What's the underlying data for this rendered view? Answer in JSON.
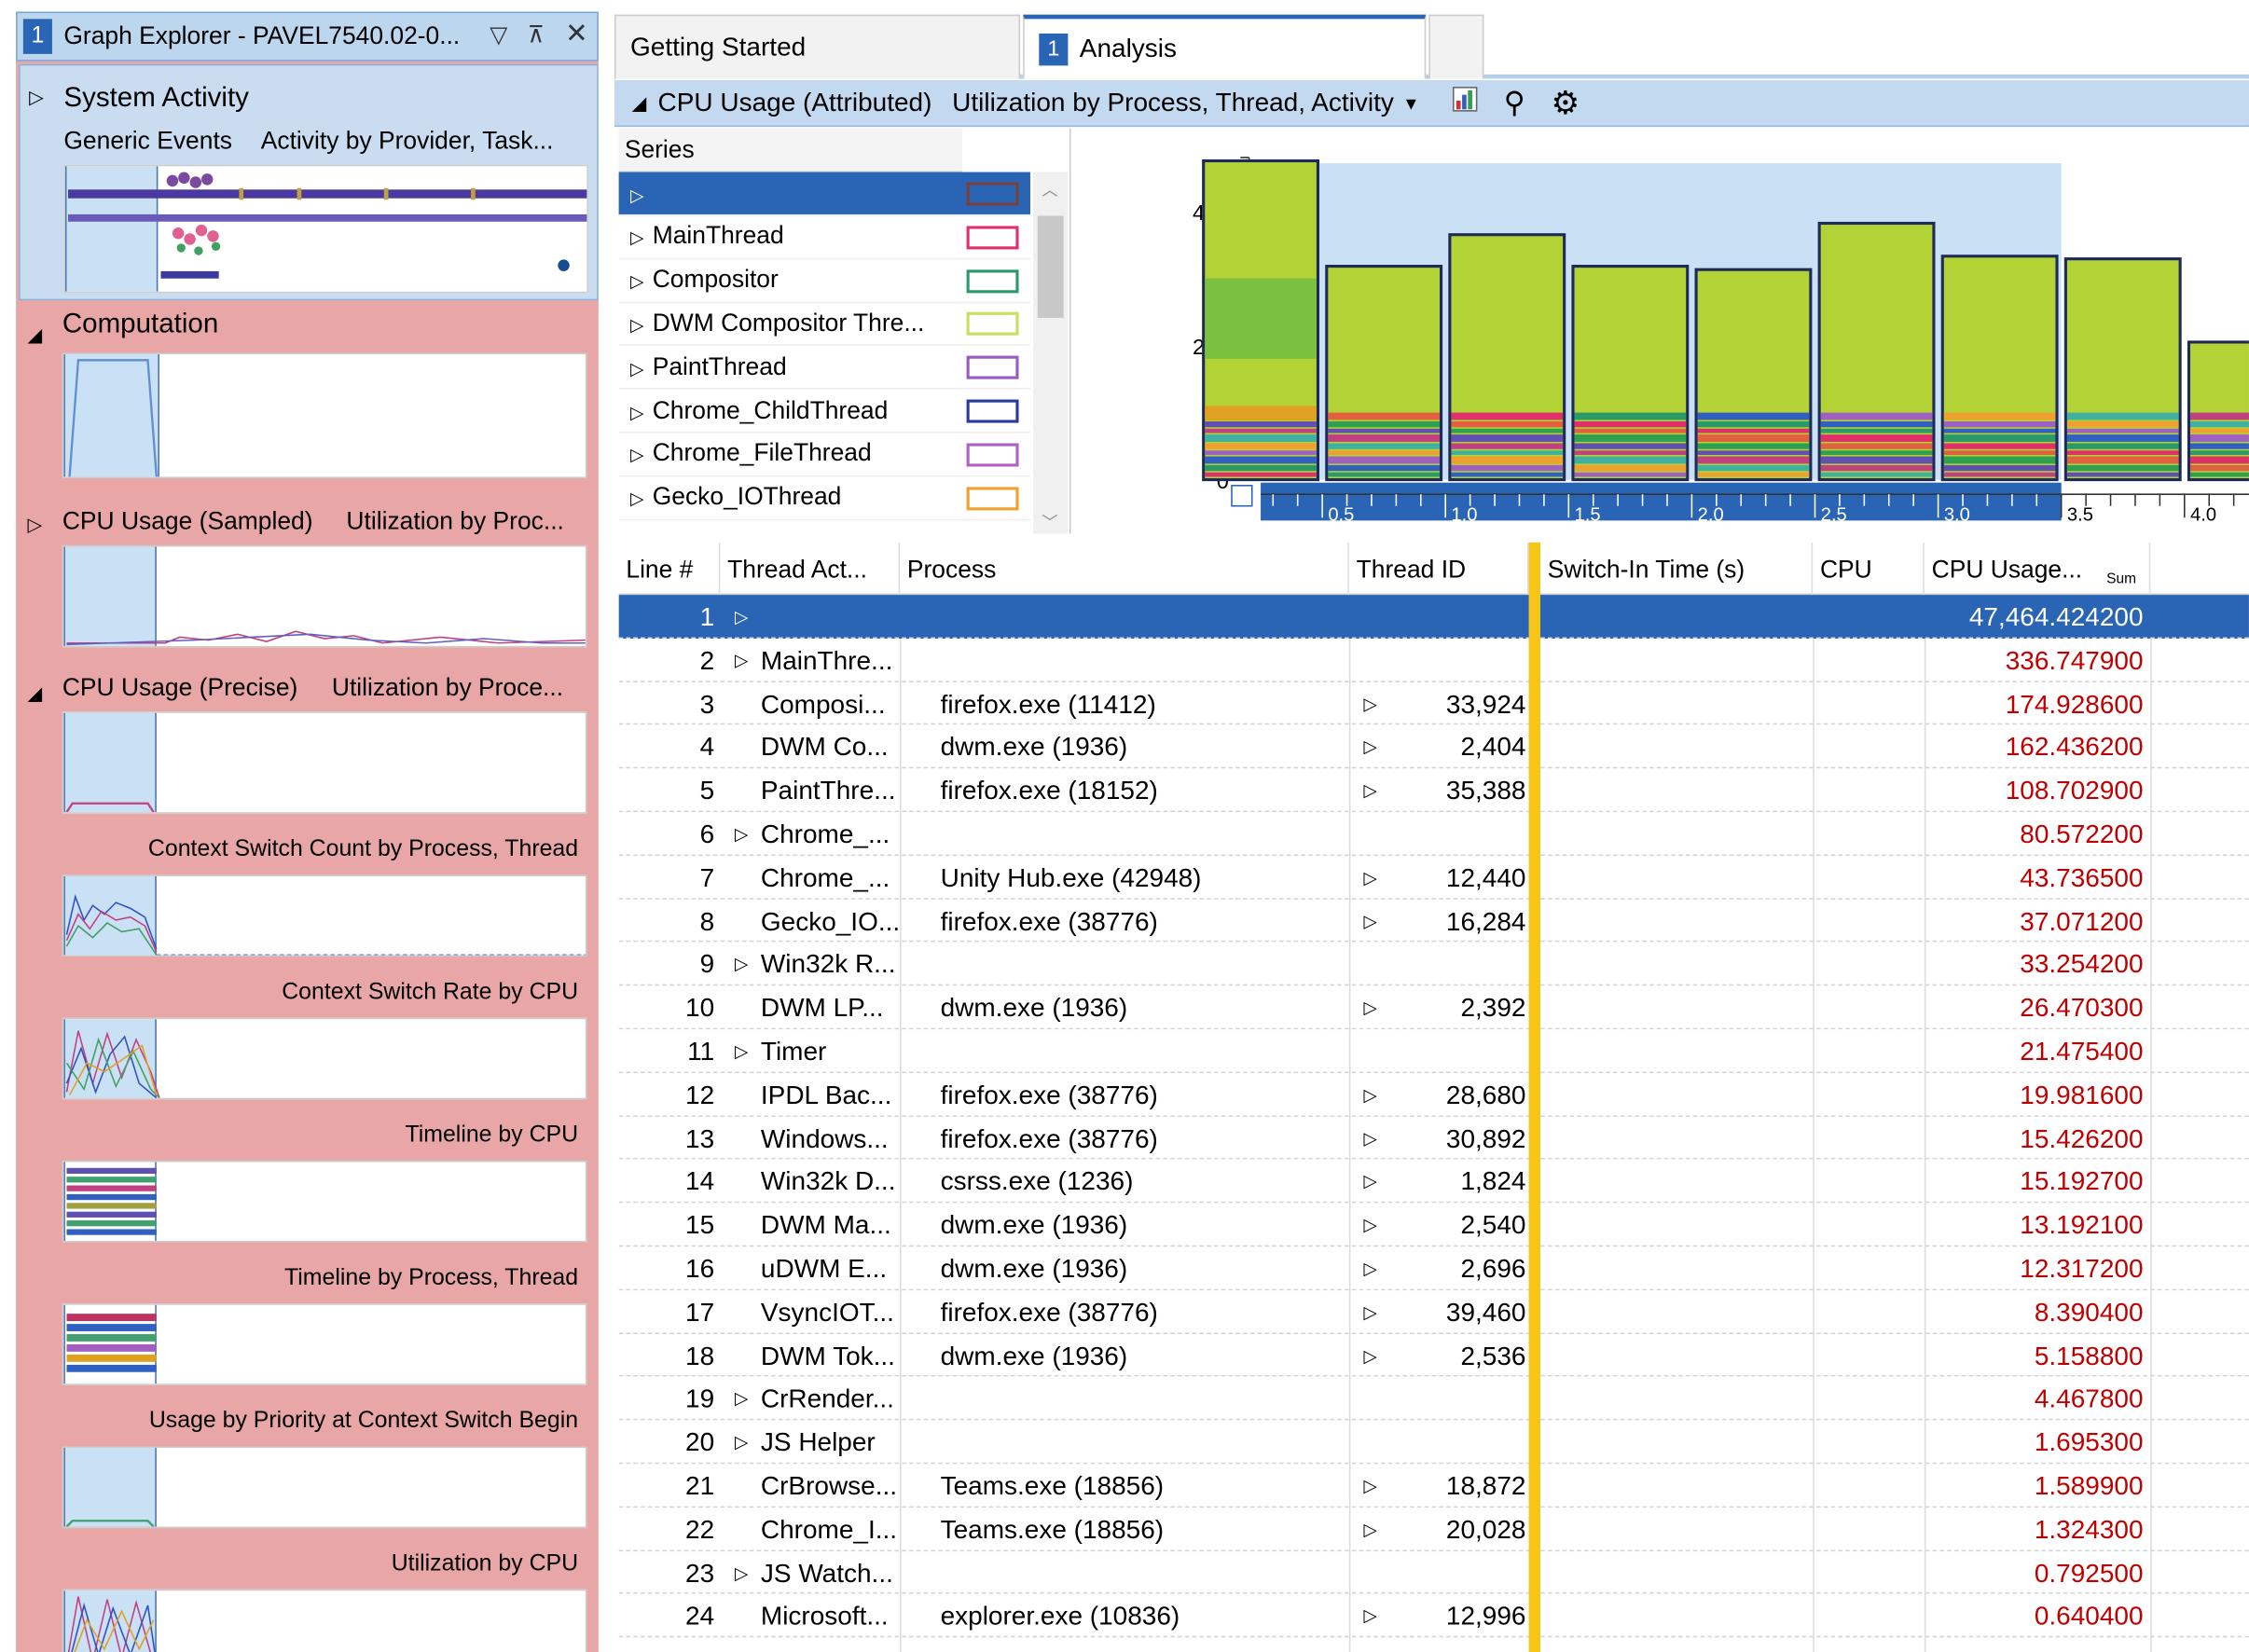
{
  "graph_explorer": {
    "tab_number": "1",
    "title": "Graph Explorer - PAVEL7540.02-0...",
    "system_activity": {
      "title": "System Activity",
      "sub1": "Generic Events",
      "sub2": "Activity by Provider, Task..."
    },
    "computation_title": "Computation",
    "cpu_sampled": {
      "title": "CPU Usage (Sampled)",
      "sub": "Utilization by Proc..."
    },
    "cpu_precise": {
      "title": "CPU Usage (Precise)",
      "sub": "Utilization by Proce..."
    },
    "graph_labels": [
      "Context Switch Count by Process, Thread",
      "Context Switch Rate by CPU",
      "Timeline by CPU",
      "Timeline by Process, Thread",
      "Usage by Priority at Context Switch Begin",
      "Utilization by CPU"
    ]
  },
  "tabs": [
    {
      "label": "Getting Started"
    },
    {
      "number": "1",
      "label": "Analysis"
    }
  ],
  "toolbar": {
    "graph": "CPU Usage (Attributed)",
    "preset": "Utilization by Process, Thread, Activity"
  },
  "series": {
    "header": "Series",
    "items": [
      {
        "label": "",
        "color": "#7a4040"
      },
      {
        "label": "MainThread",
        "color": "#e0306a"
      },
      {
        "label": "Compositor",
        "color": "#2a9a6a"
      },
      {
        "label": "DWM Compositor Thre...",
        "color": "#c8e060"
      },
      {
        "label": "PaintThread",
        "color": "#9a5ac0"
      },
      {
        "label": "Chrome_ChildThread",
        "color": "#2a3a9a"
      },
      {
        "label": "Chrome_FileThread",
        "color": "#b060c0"
      },
      {
        "label": "Gecko_IOThread",
        "color": "#f0a030"
      }
    ]
  },
  "chart_data": {
    "type": "bar",
    "x": [
      0.25,
      0.75,
      1.25,
      1.75,
      2.25,
      2.75,
      3.25,
      3.75,
      4.25
    ],
    "values": [
      475,
      318,
      365,
      318,
      313,
      382,
      333,
      329,
      205
    ],
    "x_ticks": [
      "0.5",
      "1.0",
      "1.5",
      "2.0",
      "2.5",
      "3.0",
      "3.5",
      "4.0"
    ],
    "y_ticks": [
      "0",
      "200",
      "400"
    ],
    "ylim": [
      0,
      480
    ]
  },
  "table": {
    "columns": [
      "Line #",
      "Thread Act...",
      "Process",
      "Thread ID",
      "Switch-In Time (s)",
      "CPU",
      "CPU Usage...",
      "Sum"
    ],
    "rows": [
      {
        "line": "1",
        "activity": "",
        "process": "",
        "tid": "",
        "usage": "47,464.424200"
      },
      {
        "line": "2",
        "activity": "MainThre...",
        "process": "",
        "tid": "",
        "usage": "336.747900"
      },
      {
        "line": "3",
        "activity": "Composi...",
        "process": "firefox.exe (11412)",
        "tid": "33,924",
        "usage": "174.928600"
      },
      {
        "line": "4",
        "activity": "DWM Co...",
        "process": "dwm.exe (1936)",
        "tid": "2,404",
        "usage": "162.436200"
      },
      {
        "line": "5",
        "activity": "PaintThre...",
        "process": "firefox.exe (18152)",
        "tid": "35,388",
        "usage": "108.702900"
      },
      {
        "line": "6",
        "activity": "Chrome_...",
        "process": "",
        "tid": "",
        "usage": "80.572200"
      },
      {
        "line": "7",
        "activity": "Chrome_...",
        "process": "Unity Hub.exe (42948)",
        "tid": "12,440",
        "usage": "43.736500"
      },
      {
        "line": "8",
        "activity": "Gecko_IO...",
        "process": "firefox.exe (38776)",
        "tid": "16,284",
        "usage": "37.071200"
      },
      {
        "line": "9",
        "activity": "Win32k R...",
        "process": "",
        "tid": "",
        "usage": "33.254200"
      },
      {
        "line": "10",
        "activity": "DWM LP...",
        "process": "dwm.exe (1936)",
        "tid": "2,392",
        "usage": "26.470300"
      },
      {
        "line": "11",
        "activity": "Timer",
        "process": "",
        "tid": "",
        "usage": "21.475400"
      },
      {
        "line": "12",
        "activity": "IPDL Bac...",
        "process": "firefox.exe (38776)",
        "tid": "28,680",
        "usage": "19.981600"
      },
      {
        "line": "13",
        "activity": "Windows...",
        "process": "firefox.exe (38776)",
        "tid": "30,892",
        "usage": "15.426200"
      },
      {
        "line": "14",
        "activity": "Win32k D...",
        "process": "csrss.exe (1236)",
        "tid": "1,824",
        "usage": "15.192700"
      },
      {
        "line": "15",
        "activity": "DWM Ma...",
        "process": "dwm.exe (1936)",
        "tid": "2,540",
        "usage": "13.192100"
      },
      {
        "line": "16",
        "activity": "uDWM E...",
        "process": "dwm.exe (1936)",
        "tid": "2,696",
        "usage": "12.317200"
      },
      {
        "line": "17",
        "activity": "VsyncIOT...",
        "process": "firefox.exe (38776)",
        "tid": "39,460",
        "usage": "8.390400"
      },
      {
        "line": "18",
        "activity": "DWM Tok...",
        "process": "dwm.exe (1936)",
        "tid": "2,536",
        "usage": "5.158800"
      },
      {
        "line": "19",
        "activity": "CrRender...",
        "process": "",
        "tid": "",
        "usage": "4.467800"
      },
      {
        "line": "20",
        "activity": "JS Helper",
        "process": "",
        "tid": "",
        "usage": "1.695300"
      },
      {
        "line": "21",
        "activity": "CrBrowse...",
        "process": "Teams.exe (18856)",
        "tid": "18,872",
        "usage": "1.589900"
      },
      {
        "line": "22",
        "activity": "Chrome_I...",
        "process": "Teams.exe (18856)",
        "tid": "20,028",
        "usage": "1.324300"
      },
      {
        "line": "23",
        "activity": "JS Watch...",
        "process": "",
        "tid": "",
        "usage": "0.792500"
      },
      {
        "line": "24",
        "activity": "Microsoft...",
        "process": "explorer.exe (10836)",
        "tid": "12,996",
        "usage": "0.640400"
      }
    ]
  }
}
